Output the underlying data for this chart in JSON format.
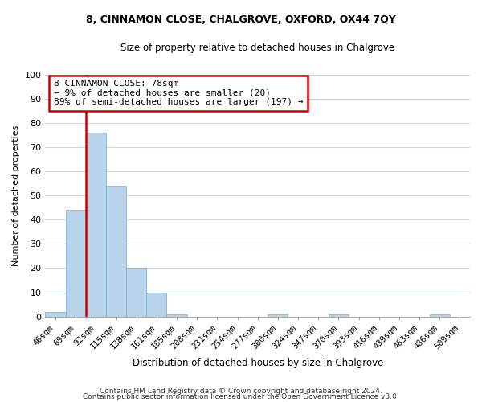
{
  "title": "8, CINNAMON CLOSE, CHALGROVE, OXFORD, OX44 7QY",
  "subtitle": "Size of property relative to detached houses in Chalgrove",
  "xlabel": "Distribution of detached houses by size in Chalgrove",
  "ylabel": "Number of detached properties",
  "bar_labels": [
    "46sqm",
    "69sqm",
    "92sqm",
    "115sqm",
    "138sqm",
    "161sqm",
    "185sqm",
    "208sqm",
    "231sqm",
    "254sqm",
    "277sqm",
    "300sqm",
    "324sqm",
    "347sqm",
    "370sqm",
    "393sqm",
    "416sqm",
    "439sqm",
    "463sqm",
    "486sqm",
    "509sqm"
  ],
  "bar_values": [
    2,
    44,
    76,
    54,
    20,
    10,
    1,
    0,
    0,
    0,
    0,
    1,
    0,
    0,
    1,
    0,
    0,
    0,
    0,
    1,
    0
  ],
  "bar_color": "#b8d4ea",
  "bar_edge_color": "#7aaac8",
  "vline_color": "#cc0000",
  "annotation_text": "8 CINNAMON CLOSE: 78sqm\n← 9% of detached houses are smaller (20)\n89% of semi-detached houses are larger (197) →",
  "annotation_box_color": "#ffffff",
  "annotation_box_edgecolor": "#cc0000",
  "ylim": [
    0,
    100
  ],
  "yticks": [
    0,
    10,
    20,
    30,
    40,
    50,
    60,
    70,
    80,
    90,
    100
  ],
  "footer_line1": "Contains HM Land Registry data © Crown copyright and database right 2024.",
  "footer_line2": "Contains public sector information licensed under the Open Government Licence v3.0.",
  "background_color": "#ffffff",
  "grid_color": "#c8d8e8",
  "title_fontsize": 9,
  "subtitle_fontsize": 8.5,
  "axis_label_fontsize": 8,
  "tick_fontsize": 7.5,
  "footer_fontsize": 6.5
}
